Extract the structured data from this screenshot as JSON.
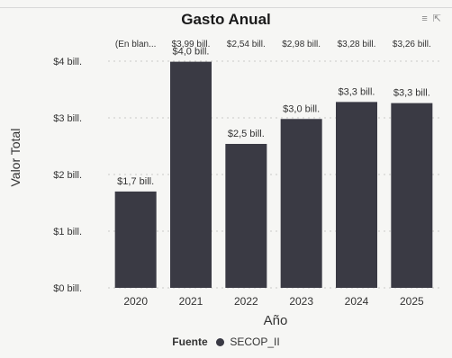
{
  "chart_data": {
    "type": "bar",
    "title": "Gasto Anual",
    "xlabel": "Año",
    "ylabel": "Valor Total",
    "categories": [
      "2020",
      "2021",
      "2022",
      "2023",
      "2024",
      "2025"
    ],
    "values": [
      1.7,
      3.99,
      2.54,
      2.98,
      3.28,
      3.26
    ],
    "data_labels": [
      "$1,7 bill.",
      "$4,0 bill.",
      "$2,5 bill.",
      "$3,0 bill.",
      "$3,3 bill.",
      "$3,3 bill."
    ],
    "top_annotations": [
      "(En blan...",
      "$3,99 bill.",
      "$2,54 bill.",
      "$2,98 bill.",
      "$3,28 bill.",
      "$3,26 bill."
    ],
    "y_ticks": [
      0,
      1,
      2,
      3,
      4
    ],
    "y_tick_labels": [
      "$0 bill.",
      "$1 bill.",
      "$2 bill.",
      "$3 bill.",
      "$4 bill."
    ],
    "ylim": [
      0,
      4.2
    ],
    "grid": true,
    "bar_color": "#3a3a44",
    "legend": {
      "title": "Fuente",
      "entries": [
        "SECOP_II"
      ],
      "placement": "bottom"
    }
  },
  "header_icons": [
    "filter-icon",
    "focus-mode-icon"
  ]
}
